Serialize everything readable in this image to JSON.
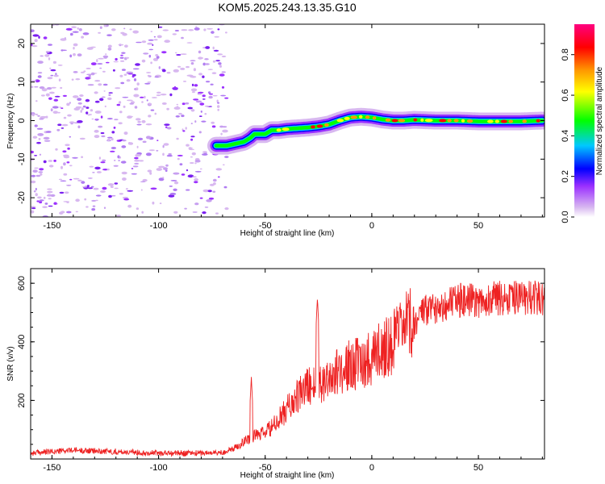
{
  "title": "KOM5.2025.243.13.35.G10",
  "chart_data": [
    {
      "type": "heatmap",
      "name": "spectrogram",
      "xlabel": "Height of straight line (km)",
      "ylabel": "Frequency (Hz)",
      "xlim": [
        -160,
        81
      ],
      "ylim": [
        -25,
        25
      ],
      "xticks": [
        -150,
        -100,
        -50,
        0,
        50
      ],
      "yticks": [
        -20,
        -10,
        0,
        10,
        20
      ],
      "noise_region_x": [
        -160,
        -68
      ],
      "ridge": {
        "x": [
          -73,
          -68,
          -64,
          -60,
          -57,
          -55,
          -50,
          -47,
          -44,
          -40,
          -35,
          -30,
          -25,
          -20,
          -15,
          -10,
          -5,
          0,
          5,
          10,
          15,
          20,
          30,
          40,
          50,
          60,
          70,
          80
        ],
        "y": [
          -6.5,
          -6.5,
          -6,
          -5.5,
          -4.5,
          -3.5,
          -3.5,
          -2.5,
          -2.5,
          -2.2,
          -2,
          -1.8,
          -1.5,
          -1,
          0,
          0.8,
          1,
          0.8,
          0.3,
          0,
          0,
          0.2,
          0,
          0,
          -0.2,
          -0.2,
          -0.2,
          0
        ]
      },
      "colorbar": {
        "label": "Normalized spectral amplitude",
        "range": [
          0,
          0.95
        ],
        "ticks": [
          "0.0",
          "0.2",
          "0.4",
          "0.6",
          "0.8"
        ],
        "colors": [
          "#ffffff",
          "#d8b8f0",
          "#9b30ff",
          "#0000ff",
          "#00c8ff",
          "#00ff00",
          "#ffff00",
          "#ff9900",
          "#ff0000",
          "#ff0080"
        ]
      }
    },
    {
      "type": "line",
      "name": "snr",
      "xlabel": "Height of straight line (km)",
      "ylabel": "SNR (v/v)",
      "xlim": [
        -160,
        81
      ],
      "ylim": [
        0,
        650
      ],
      "xticks": [
        -150,
        -100,
        -50,
        0,
        50
      ],
      "yticks": [
        200,
        400,
        600
      ],
      "color": "#ee2222",
      "trend": {
        "x": [
          -160,
          -140,
          -120,
          -100,
          -80,
          -70,
          -65,
          -60,
          -55,
          -50,
          -45,
          -40,
          -35,
          -30,
          -25,
          -20,
          -15,
          -10,
          -5,
          0,
          5,
          10,
          15,
          20,
          25,
          30,
          40,
          50,
          60,
          70,
          81
        ],
        "y": [
          20,
          30,
          25,
          20,
          20,
          22,
          35,
          60,
          80,
          90,
          120,
          170,
          210,
          250,
          260,
          280,
          300,
          320,
          330,
          350,
          380,
          400,
          440,
          470,
          500,
          520,
          540,
          540,
          550,
          550,
          550
        ]
      },
      "spikes": [
        {
          "x": -56.5,
          "y": 280
        },
        {
          "x": -25.5,
          "y": 550
        }
      ]
    }
  ]
}
